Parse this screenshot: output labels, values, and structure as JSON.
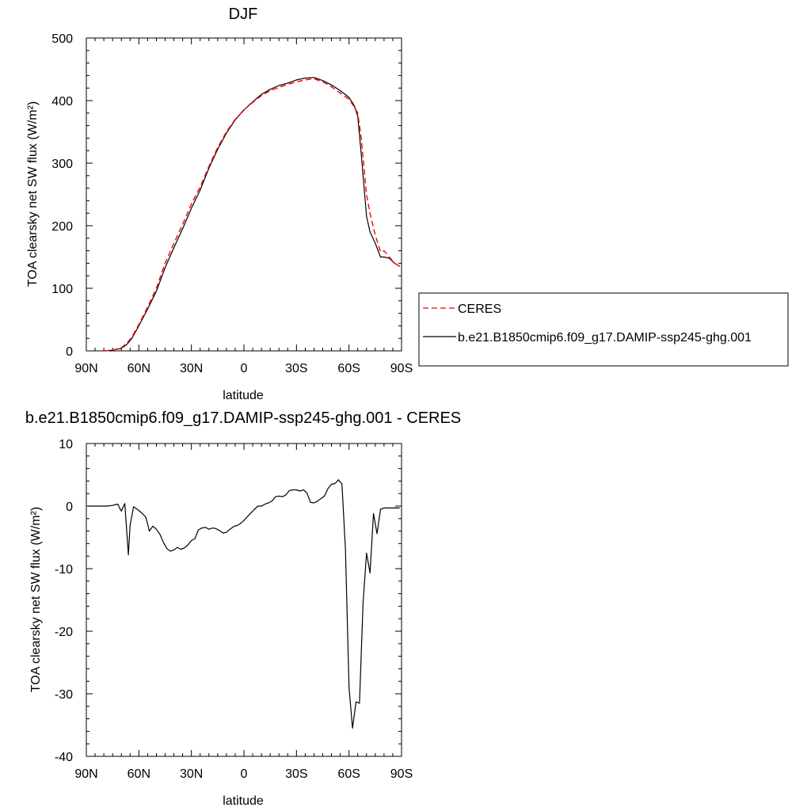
{
  "chart_data": [
    {
      "type": "line",
      "title": "DJF",
      "xlabel": "latitude",
      "ylabel": "TOA clearsky net SW flux (W/m²)",
      "x_ticks": [
        "90N",
        "60N",
        "30N",
        "0",
        "30S",
        "60S",
        "90S"
      ],
      "x_tick_values": [
        90,
        60,
        30,
        0,
        -30,
        -60,
        -90
      ],
      "y_ticks": [
        "0",
        "100",
        "200",
        "300",
        "400",
        "500"
      ],
      "y_tick_values": [
        0,
        100,
        200,
        300,
        400,
        500
      ],
      "xlim": [
        90,
        -90
      ],
      "ylim": [
        0,
        500
      ],
      "legend": {
        "placement": "right",
        "entries": [
          "CERES",
          "b.e21.B1850cmip6.f09_g17.DAMIP-ssp245-ghg.001"
        ]
      },
      "series": [
        {
          "name": "CERES",
          "color": "#ff0000",
          "dashed": true,
          "x": [
            80,
            75,
            70,
            67,
            64,
            60,
            55,
            50,
            45,
            40,
            35,
            30,
            25,
            20,
            15,
            10,
            5,
            0,
            -5,
            -10,
            -15,
            -20,
            -25,
            -30,
            -35,
            -40,
            -45,
            -50,
            -55,
            -60,
            -63,
            -65,
            -67,
            -70,
            -72,
            -75,
            -78,
            -80,
            -83,
            -86,
            -89
          ],
          "y": [
            0,
            1,
            5,
            12,
            22,
            42,
            70,
            100,
            140,
            172,
            202,
            235,
            262,
            295,
            325,
            350,
            370,
            385,
            397,
            408,
            416,
            421,
            426,
            430,
            433,
            435,
            430,
            422,
            412,
            402,
            390,
            380,
            340,
            250,
            220,
            185,
            158,
            160,
            150,
            140,
            135
          ]
        },
        {
          "name": "b.e21.B1850cmip6.f09_g17.DAMIP-ssp245-ghg.001",
          "color": "#000000",
          "dashed": false,
          "x": [
            80,
            75,
            70,
            67,
            64,
            60,
            55,
            50,
            45,
            40,
            35,
            30,
            25,
            20,
            15,
            10,
            5,
            0,
            -5,
            -10,
            -15,
            -20,
            -25,
            -30,
            -35,
            -40,
            -45,
            -50,
            -55,
            -60,
            -63,
            -65,
            -67,
            -70,
            -72,
            -75,
            -78,
            -80,
            -83,
            -86,
            -89
          ],
          "y": [
            0,
            1,
            4,
            10,
            20,
            40,
            67,
            95,
            133,
            165,
            195,
            228,
            257,
            292,
            322,
            348,
            369,
            385,
            398,
            410,
            418,
            424,
            428,
            433,
            436,
            437,
            432,
            425,
            416,
            405,
            392,
            375,
            315,
            215,
            190,
            172,
            150,
            150,
            148,
            140,
            135
          ]
        }
      ]
    },
    {
      "type": "line",
      "title": "b.e21.B1850cmip6.f09_g17.DAMIP-ssp245-ghg.001 - CERES",
      "xlabel": "latitude",
      "ylabel": "TOA clearsky net SW flux (W/m²)",
      "x_ticks": [
        "90N",
        "60N",
        "30N",
        "0",
        "30S",
        "60S",
        "90S"
      ],
      "x_tick_values": [
        90,
        60,
        30,
        0,
        -30,
        -60,
        -90
      ],
      "y_ticks": [
        "-40",
        "-30",
        "-20",
        "-10",
        "0",
        "10"
      ],
      "y_tick_values": [
        -40,
        -30,
        -20,
        -10,
        0,
        10
      ],
      "xlim": [
        90,
        -90
      ],
      "ylim": [
        -40,
        10
      ],
      "series": [
        {
          "color": "#000000",
          "dashed": false,
          "x": [
            89,
            85,
            80,
            78,
            77,
            75,
            74,
            72,
            71,
            70,
            68,
            66,
            65,
            63,
            60,
            58,
            56,
            54,
            52,
            50,
            48,
            46,
            44,
            42,
            40,
            38,
            36,
            34,
            32,
            30,
            28,
            26,
            24,
            22,
            20,
            18,
            16,
            14,
            12,
            10,
            8,
            6,
            4,
            2,
            0,
            -2,
            -4,
            -6,
            -8,
            -10,
            -12,
            -14,
            -16,
            -18,
            -20,
            -22,
            -24,
            -26,
            -28,
            -30,
            -32,
            -34,
            -36,
            -38,
            -40,
            -42,
            -44,
            -46,
            -48,
            -50,
            -52,
            -54,
            -56,
            -58,
            -60,
            -62,
            -64,
            -66,
            -68,
            -70,
            -72,
            -74,
            -76,
            -78,
            -80,
            -82,
            -84,
            -86,
            -88,
            -89
          ],
          "y": [
            0,
            0,
            0,
            0,
            0.05,
            0.1,
            0.2,
            0.3,
            -0.3,
            -0.8,
            0.4,
            -7.8,
            -3,
            -0.1,
            -0.7,
            -1.2,
            -1.8,
            -4,
            -3.2,
            -3.7,
            -4.5,
            -5.8,
            -6.8,
            -7.2,
            -7.0,
            -6.6,
            -6.9,
            -6.7,
            -6.2,
            -5.5,
            -5.2,
            -3.8,
            -3.5,
            -3.4,
            -3.7,
            -3.5,
            -3.6,
            -3.9,
            -4.3,
            -4.2,
            -3.7,
            -3.3,
            -3.1,
            -2.8,
            -2.3,
            -1.7,
            -1.1,
            -0.5,
            0,
            0,
            0.3,
            0.5,
            0.8,
            1.5,
            1.6,
            1.5,
            1.8,
            2.5,
            2.6,
            2.6,
            2.4,
            2.6,
            2.1,
            0.6,
            0.5,
            0.8,
            1.2,
            1.6,
            2.8,
            3.5,
            3.6,
            4.2,
            3.5,
            -7.0,
            -29.0,
            -35.5,
            -31.3,
            -31.5,
            -15.5,
            -7.5,
            -10.7,
            -1.2,
            -4.4,
            -0.5,
            -0.3,
            -0.3,
            -0.3,
            -0.3,
            -0.3,
            -0.3
          ]
        }
      ]
    }
  ]
}
